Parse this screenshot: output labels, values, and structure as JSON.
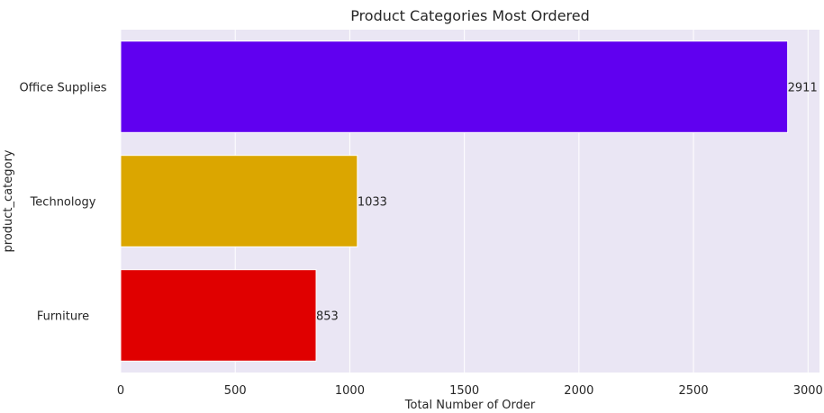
{
  "chart_data": {
    "type": "bar",
    "orientation": "horizontal",
    "title": "Product Categories Most Ordered",
    "xlabel": "Total Number of Order",
    "ylabel": "product_category",
    "categories": [
      "Office Supplies",
      "Technology",
      "Furniture"
    ],
    "values": [
      2911,
      1033,
      853
    ],
    "data_labels": [
      "2911",
      "1033",
      "853"
    ],
    "colors": [
      "#6000f0",
      "#dba600",
      "#e00000"
    ],
    "xlim": [
      0,
      3050
    ],
    "xticks": [
      0,
      500,
      1000,
      1500,
      2000,
      2500,
      3000
    ],
    "xtick_labels": [
      "0",
      "500",
      "1000",
      "1500",
      "2000",
      "2500",
      "3000"
    ],
    "grid": true,
    "grid_axis": "x",
    "background": "#eae6f4",
    "grid_color": "#ffffff"
  }
}
